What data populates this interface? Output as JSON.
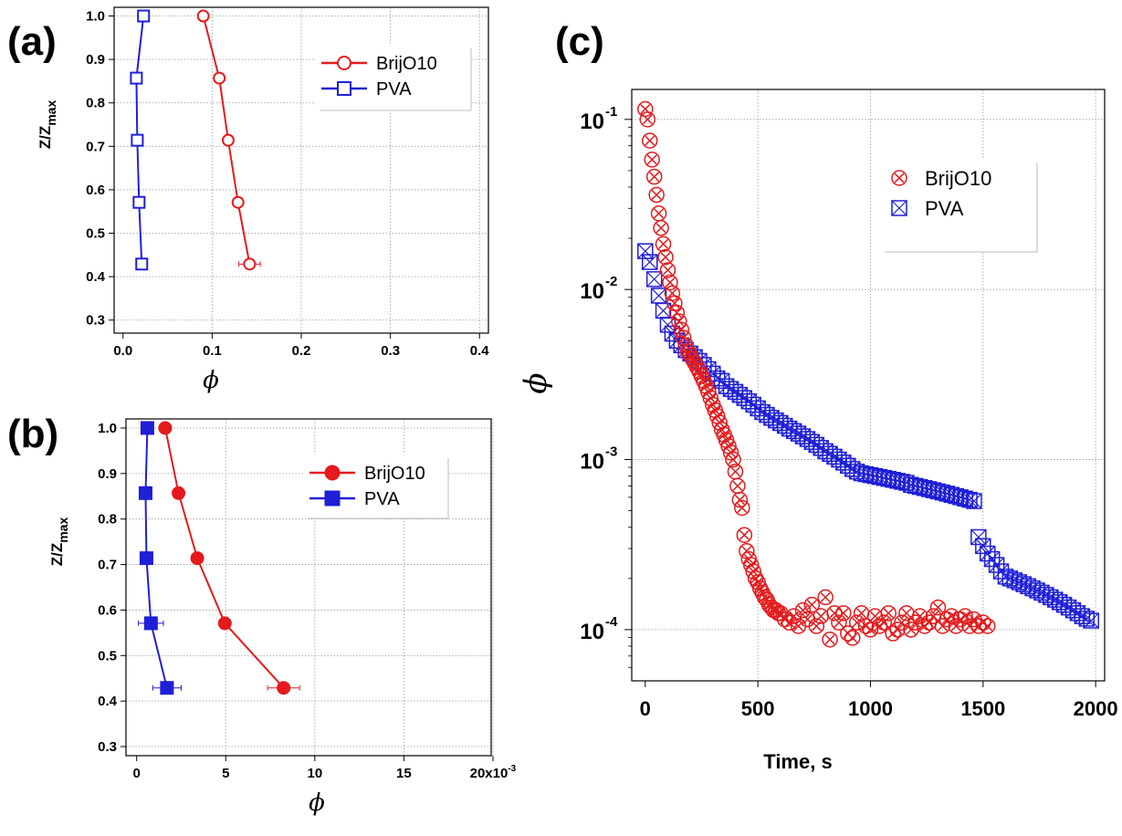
{
  "chart_data": [
    {
      "type": "line",
      "panel_label": "(a)",
      "xlabel": "ϕ",
      "ylabel_main": "Z/Z",
      "ylabel_sub": "max",
      "xlim": [
        -0.01,
        0.41
      ],
      "ylim": [
        0.27,
        1.02
      ],
      "xticks": [
        "0.0",
        "0.1",
        "0.2",
        "0.3",
        "0.4"
      ],
      "xtick_values": [
        0.0,
        0.1,
        0.2,
        0.3,
        0.4
      ],
      "yticks": [
        "0.3",
        "0.4",
        "0.5",
        "0.6",
        "0.7",
        "0.8",
        "0.9",
        "1.0"
      ],
      "ytick_values": [
        0.3,
        0.4,
        0.5,
        0.6,
        0.7,
        0.8,
        0.9,
        1.0
      ],
      "grid": true,
      "legend_position": "top-right",
      "series": [
        {
          "name": "BrijO10",
          "color": "#e41a1c",
          "marker": "open-circle",
          "x": [
            0.142,
            0.129,
            0.118,
            0.108,
            0.09
          ],
          "y": [
            0.429,
            0.571,
            0.714,
            0.857,
            1.0
          ],
          "xerr": [
            0.012,
            0,
            0,
            0,
            0
          ]
        },
        {
          "name": "PVA",
          "color": "#1f1fd6",
          "marker": "open-square",
          "x": [
            0.021,
            0.018,
            0.016,
            0.015,
            0.023
          ],
          "y": [
            0.429,
            0.571,
            0.714,
            0.857,
            1.0
          ],
          "xerr": [
            0,
            0,
            0,
            0,
            0
          ]
        }
      ]
    },
    {
      "type": "line",
      "panel_label": "(b)",
      "xlabel": "ϕ",
      "ylabel_main": "Z/Z",
      "ylabel_sub": "max",
      "xlim": [
        -0.0006,
        0.0199
      ],
      "ylim": [
        0.28,
        1.02
      ],
      "xticks": [
        "0",
        "5",
        "10",
        "15",
        "20x10"
      ],
      "xtick_exp": "-3",
      "xtick_values": [
        0,
        0.005,
        0.01,
        0.015,
        0.02
      ],
      "yticks": [
        "0.3",
        "0.4",
        "0.5",
        "0.6",
        "0.7",
        "0.8",
        "0.9",
        "1.0"
      ],
      "ytick_values": [
        0.3,
        0.4,
        0.5,
        0.6,
        0.7,
        0.8,
        0.9,
        1.0
      ],
      "grid": true,
      "legend_position": "top-right",
      "series": [
        {
          "name": "BrijO10",
          "color": "#e41a1c",
          "marker": "filled-circle",
          "x": [
            0.00825,
            0.00495,
            0.0034,
            0.00235,
            0.0016
          ],
          "y": [
            0.429,
            0.571,
            0.714,
            0.857,
            1.0
          ],
          "xerr": [
            0.0009,
            0,
            0,
            0,
            0
          ]
        },
        {
          "name": "PVA",
          "color": "#1f1fd6",
          "marker": "filled-square",
          "x": [
            0.0017,
            0.0008,
            0.00055,
            0.0005,
            0.0006
          ],
          "y": [
            0.429,
            0.571,
            0.714,
            0.857,
            1.0
          ],
          "xerr": [
            0.0008,
            0.0007,
            0.0003,
            0.0003,
            0
          ]
        }
      ]
    },
    {
      "type": "scatter",
      "panel_label": "(c)",
      "xlabel": "Time, s",
      "ylabel": "ϕ",
      "yscale": "log",
      "xlim": [
        -60,
        2040
      ],
      "ylim": [
        5e-05,
        0.15
      ],
      "xticks": [
        "0",
        "500",
        "1000",
        "1500",
        "2000"
      ],
      "xtick_values": [
        0,
        500,
        1000,
        1500,
        2000
      ],
      "yticks": [
        {
          "base": "10",
          "exp": "-1",
          "value": 0.1
        },
        {
          "base": "10",
          "exp": "-2",
          "value": 0.01
        },
        {
          "base": "10",
          "exp": "-3",
          "value": 0.001
        },
        {
          "base": "10",
          "exp": "-4",
          "value": 0.0001
        }
      ],
      "grid": true,
      "legend_position": "top-right",
      "series": [
        {
          "name": "BrijO10",
          "color": "#e41a1c",
          "marker": "circle-x",
          "x": [
            0,
            10,
            20,
            30,
            40,
            50,
            60,
            70,
            80,
            90,
            100,
            110,
            120,
            130,
            140,
            150,
            160,
            170,
            180,
            190,
            200,
            210,
            220,
            230,
            240,
            250,
            260,
            270,
            280,
            290,
            300,
            310,
            320,
            330,
            340,
            350,
            360,
            370,
            380,
            390,
            400,
            410,
            420,
            430,
            440,
            450,
            460,
            470,
            480,
            490,
            500,
            510,
            520,
            530,
            540,
            550,
            560,
            570,
            580,
            590,
            600,
            620,
            640,
            660,
            680,
            700,
            720,
            740,
            760,
            780,
            800,
            820,
            840,
            860,
            880,
            900,
            920,
            940,
            960,
            980,
            1000,
            1020,
            1040,
            1060,
            1080,
            1100,
            1120,
            1140,
            1160,
            1180,
            1200,
            1220,
            1240,
            1260,
            1280,
            1300,
            1320,
            1340,
            1360,
            1380,
            1400,
            1420,
            1440,
            1460,
            1480,
            1500,
            1520
          ],
          "y": [
            0.115,
            0.1,
            0.075,
            0.058,
            0.046,
            0.036,
            0.028,
            0.023,
            0.0185,
            0.0155,
            0.013,
            0.011,
            0.0095,
            0.0083,
            0.0073,
            0.0065,
            0.0058,
            0.0052,
            0.0047,
            0.0043,
            0.0041,
            0.0039,
            0.0037,
            0.0035,
            0.0033,
            0.0031,
            0.0029,
            0.0027,
            0.0025,
            0.0023,
            0.0021,
            0.00195,
            0.0018,
            0.00165,
            0.0015,
            0.0014,
            0.0013,
            0.0012,
            0.0011,
            0.001,
            0.00085,
            0.0007,
            0.00058,
            0.00052,
            0.00036,
            0.00029,
            0.00026,
            0.00024,
            0.00022,
            0.0002,
            0.00019,
            0.000175,
            0.000165,
            0.000155,
            0.00015,
            0.00014,
            0.000135,
            0.00013,
            0.00013,
            0.000125,
            0.000125,
            0.000115,
            0.00011,
            0.00012,
            0.000105,
            0.00013,
            0.000115,
            0.00014,
            0.000105,
            0.00012,
            0.000155,
            8.75e-05,
            0.000125,
            0.00011,
            0.000125,
            9.5e-05,
            8.95e-05,
            0.00011,
            0.000125,
            0.000105,
            0.0001,
            0.00012,
            0.000105,
            0.00011,
            0.000125,
            9.5e-05,
            0.0001,
            0.00011,
            0.000125,
            0.0001,
            0.00011,
            0.00012,
            0.000105,
            0.00011,
            0.00012,
            0.000135,
            0.000105,
            0.000115,
            0.00012,
            0.000105,
            0.000115,
            0.00012,
            0.000105,
            0.000115,
            0.000105,
            0.00011,
            0.000105
          ]
        },
        {
          "name": "PVA",
          "color": "#1f1fd6",
          "marker": "square-x",
          "x": [
            0,
            20,
            40,
            60,
            80,
            100,
            120,
            140,
            160,
            180,
            200,
            220,
            240,
            260,
            280,
            300,
            320,
            340,
            360,
            380,
            400,
            420,
            440,
            460,
            480,
            500,
            520,
            540,
            560,
            580,
            600,
            620,
            640,
            660,
            680,
            700,
            720,
            740,
            760,
            780,
            800,
            820,
            840,
            860,
            880,
            900,
            920,
            940,
            960,
            980,
            1000,
            1020,
            1040,
            1060,
            1080,
            1100,
            1120,
            1140,
            1160,
            1180,
            1200,
            1220,
            1240,
            1260,
            1280,
            1300,
            1320,
            1340,
            1360,
            1380,
            1400,
            1420,
            1440,
            1460,
            1480,
            1500,
            1520,
            1540,
            1560,
            1580,
            1600,
            1620,
            1640,
            1660,
            1680,
            1700,
            1720,
            1740,
            1760,
            1780,
            1800,
            1820,
            1840,
            1860,
            1880,
            1900,
            1920,
            1940,
            1960,
            1980
          ],
          "y": [
            0.0168,
            0.0145,
            0.0115,
            0.0092,
            0.0075,
            0.0062,
            0.0055,
            0.005,
            0.0047,
            0.0044,
            0.0042,
            0.004,
            0.0038,
            0.0036,
            0.0034,
            0.0032,
            0.003,
            0.0029,
            0.0027,
            0.0026,
            0.0025,
            0.0024,
            0.0023,
            0.0022,
            0.0021,
            0.002,
            0.0019,
            0.00183,
            0.00176,
            0.0017,
            0.00164,
            0.00158,
            0.00152,
            0.00147,
            0.00142,
            0.00137,
            0.00132,
            0.00127,
            0.00122,
            0.00117,
            0.00112,
            0.00108,
            0.00104,
            0.001,
            0.00096,
            0.00092,
            0.00088,
            0.00085,
            0.00083,
            0.00082,
            0.00081,
            0.0008,
            0.00079,
            0.00078,
            0.00077,
            0.00076,
            0.00075,
            0.00074,
            0.00073,
            0.00071,
            0.0007,
            0.00069,
            0.00068,
            0.00067,
            0.00066,
            0.00065,
            0.00064,
            0.00063,
            0.00062,
            0.00061,
            0.0006,
            0.00059,
            0.00058,
            0.00057,
            0.00035,
            0.00031,
            0.00028,
            0.00026,
            0.00024,
            0.00022,
            0.000205,
            0.0002,
            0.000195,
            0.00019,
            0.000185,
            0.00018,
            0.000175,
            0.00017,
            0.000165,
            0.00016,
            0.000155,
            0.00015,
            0.000145,
            0.00014,
            0.000135,
            0.00013,
            0.000125,
            0.00012,
            0.000116,
            0.000113
          ]
        }
      ]
    }
  ]
}
